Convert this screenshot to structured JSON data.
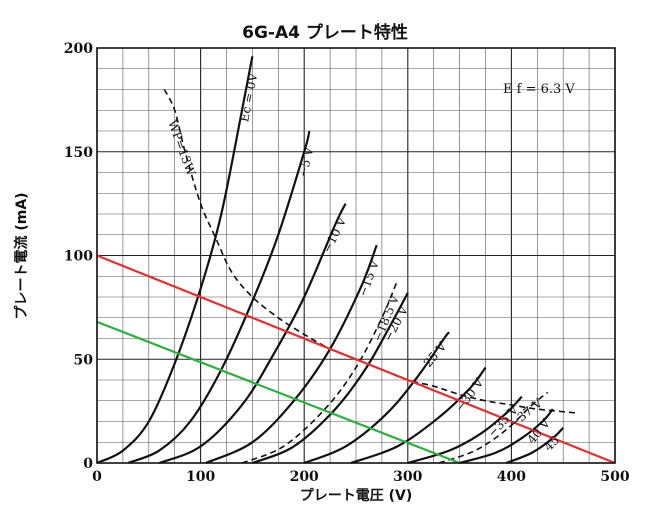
{
  "chart_data": {
    "type": "line",
    "title": "6G-A4 プレート特性",
    "xlabel": "プレート電圧 (V)",
    "ylabel": "プレート電流 (mA)",
    "xlim": [
      0,
      500
    ],
    "ylim": [
      0,
      200
    ],
    "x_ticks": [
      "0",
      "100",
      "200",
      "300",
      "400",
      "500"
    ],
    "y_ticks": [
      "0",
      "50",
      "100",
      "150",
      "200"
    ],
    "x_minor_step": 25,
    "y_minor_step": 10,
    "grid": true,
    "annotations": {
      "filament": "E f = 6.3 V",
      "max_dissipation": "WP=13W"
    },
    "series": [
      {
        "name": "Ec = 0V",
        "style": "solid",
        "points": [
          [
            0,
            0
          ],
          [
            25,
            6
          ],
          [
            50,
            20
          ],
          [
            75,
            48
          ],
          [
            100,
            84
          ],
          [
            120,
            120
          ],
          [
            140,
            170
          ],
          [
            150,
            196
          ]
        ]
      },
      {
        "name": "−5 V",
        "style": "solid",
        "points": [
          [
            30,
            0
          ],
          [
            60,
            6
          ],
          [
            90,
            20
          ],
          [
            120,
            45
          ],
          [
            150,
            78
          ],
          [
            175,
            110
          ],
          [
            200,
            150
          ],
          [
            205,
            160
          ]
        ]
      },
      {
        "name": "−10 V",
        "style": "solid",
        "points": [
          [
            60,
            0
          ],
          [
            100,
            8
          ],
          [
            140,
            28
          ],
          [
            170,
            52
          ],
          [
            200,
            80
          ],
          [
            230,
            115
          ],
          [
            240,
            125
          ]
        ]
      },
      {
        "name": "−15 V",
        "style": "solid",
        "points": [
          [
            105,
            0
          ],
          [
            150,
            10
          ],
          [
            190,
            30
          ],
          [
            225,
            55
          ],
          [
            255,
            85
          ],
          [
            270,
            105
          ]
        ]
      },
      {
        "name": "−18.5 V",
        "style": "dashed",
        "points": [
          [
            140,
            0
          ],
          [
            180,
            8
          ],
          [
            220,
            26
          ],
          [
            250,
            46
          ],
          [
            275,
            70
          ],
          [
            290,
            88
          ]
        ]
      },
      {
        "name": "−20 V",
        "style": "solid",
        "points": [
          [
            150,
            0
          ],
          [
            190,
            8
          ],
          [
            230,
            26
          ],
          [
            260,
            46
          ],
          [
            285,
            68
          ],
          [
            300,
            82
          ]
        ]
      },
      {
        "name": "−25 V",
        "style": "solid",
        "points": [
          [
            200,
            0
          ],
          [
            240,
            8
          ],
          [
            280,
            24
          ],
          [
            310,
            42
          ],
          [
            335,
            60
          ],
          [
            340,
            63
          ]
        ]
      },
      {
        "name": "−30 V",
        "style": "solid",
        "points": [
          [
            245,
            0
          ],
          [
            290,
            8
          ],
          [
            330,
            22
          ],
          [
            360,
            36
          ],
          [
            375,
            46
          ]
        ]
      },
      {
        "name": "−35 V",
        "style": "solid",
        "points": [
          [
            300,
            0
          ],
          [
            340,
            6
          ],
          [
            370,
            14
          ],
          [
            395,
            24
          ],
          [
            410,
            32
          ]
        ]
      },
      {
        "name": "−37 V",
        "style": "dashed",
        "points": [
          [
            330,
            0
          ],
          [
            365,
            6
          ],
          [
            395,
            16
          ],
          [
            420,
            28
          ],
          [
            435,
            34
          ]
        ]
      },
      {
        "name": "−40 V",
        "style": "solid",
        "points": [
          [
            350,
            0
          ],
          [
            385,
            5
          ],
          [
            410,
            12
          ],
          [
            430,
            20
          ],
          [
            440,
            26
          ]
        ]
      },
      {
        "name": "−45 V",
        "style": "solid",
        "points": [
          [
            395,
            0
          ],
          [
            420,
            5
          ],
          [
            440,
            12
          ],
          [
            450,
            17
          ]
        ]
      },
      {
        "name": "WP=13W",
        "style": "dashed",
        "points": [
          [
            65,
            180
          ],
          [
            75,
            170
          ],
          [
            85,
            150
          ],
          [
            100,
            125
          ],
          [
            115,
            108
          ],
          [
            130,
            92
          ],
          [
            150,
            80
          ],
          [
            175,
            70
          ],
          [
            200,
            62
          ],
          [
            225,
            55
          ],
          [
            250,
            50
          ],
          [
            275,
            45
          ],
          [
            300,
            40
          ],
          [
            325,
            37
          ],
          [
            350,
            33
          ],
          [
            375,
            30
          ],
          [
            400,
            28
          ],
          [
            425,
            26
          ],
          [
            465,
            24
          ]
        ]
      }
    ],
    "load_lines": [
      {
        "color": "#e03030",
        "points": [
          [
            0,
            100
          ],
          [
            500,
            0
          ]
        ]
      },
      {
        "color": "#2eae3e",
        "points": [
          [
            0,
            68
          ],
          [
            350,
            0
          ]
        ]
      }
    ],
    "curve_labels": [
      {
        "text": "Ec = 0V",
        "series": "Ec = 0V"
      },
      {
        "text": "−5 V",
        "series": "−5 V"
      },
      {
        "text": "−10 V",
        "series": "−10 V"
      },
      {
        "text": "−15 V",
        "series": "−15 V"
      },
      {
        "text": "−18.5 V",
        "series": "−18.5 V"
      },
      {
        "text": "−20 V",
        "series": "−20 V"
      },
      {
        "text": "−25 V",
        "series": "−25 V"
      },
      {
        "text": "−30 V",
        "series": "−30 V"
      },
      {
        "text": "−35 V",
        "series": "−35 V"
      },
      {
        "text": "−37 V",
        "series": "−37 V"
      },
      {
        "text": "40 V",
        "series": "−40 V"
      },
      {
        "text": "45",
        "series": "−45 V"
      }
    ]
  }
}
